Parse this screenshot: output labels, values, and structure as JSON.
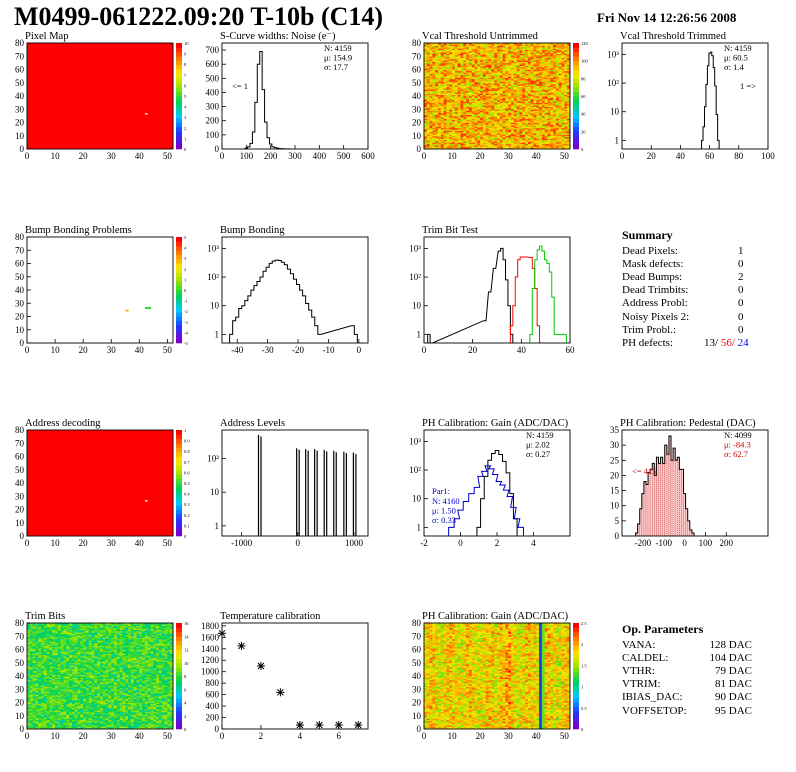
{
  "header": {
    "title": "M0499-061222.09:20 T-10b (C14)",
    "timestamp": "Fri Nov 14 12:26:56 2008"
  },
  "colors": {
    "frame": "#000000",
    "red_hist": "#ff0000",
    "green_hist": "#00cc00",
    "blue_hist": "#0000cc",
    "summary_red": "#ff0000",
    "summary_blue": "#0000ff"
  },
  "chart_data": [
    {
      "id": "pixel_map",
      "type": "heatmap",
      "title": "Pixel Map",
      "xlim": [
        0,
        52
      ],
      "ylim": [
        0,
        80
      ],
      "xticks": [
        "0",
        "10",
        "20",
        "30",
        "40",
        "50"
      ],
      "yticks": [
        "0",
        "10",
        "20",
        "30",
        "40",
        "50",
        "60",
        "70",
        "80"
      ],
      "palette_ticks": [
        "0",
        "1",
        "2",
        "3",
        "4",
        "5",
        "6",
        "7",
        "8",
        "9",
        "10"
      ],
      "fill_value": 10,
      "outliers": [
        {
          "x": 42,
          "y": 26,
          "value": 0
        }
      ]
    },
    {
      "id": "scurve_noise",
      "type": "histogram",
      "title": "S-Curve widths: Noise (e⁻)",
      "xlim": [
        0,
        600
      ],
      "ylim": [
        0,
        750
      ],
      "xticks": [
        "0",
        "100",
        "200",
        "300",
        "400",
        "500",
        "600"
      ],
      "yticks": [
        "0",
        "100",
        "200",
        "300",
        "400",
        "500",
        "600",
        "700"
      ],
      "stats": [
        "N: 4159",
        "μ: 154.9",
        "σ: 17.7"
      ],
      "annotations": [
        "<= 1"
      ],
      "bins": [
        [
          90,
          0
        ],
        [
          100,
          6
        ],
        [
          110,
          15
        ],
        [
          120,
          40
        ],
        [
          130,
          120
        ],
        [
          140,
          330
        ],
        [
          150,
          600
        ],
        [
          160,
          690
        ],
        [
          170,
          420
        ],
        [
          180,
          190
        ],
        [
          190,
          80
        ],
        [
          200,
          35
        ],
        [
          210,
          15
        ],
        [
          220,
          10
        ],
        [
          230,
          5
        ],
        [
          240,
          3
        ],
        [
          250,
          2
        ],
        [
          260,
          1
        ],
        [
          270,
          1
        ],
        [
          280,
          0
        ]
      ]
    },
    {
      "id": "vcal_untrimmed",
      "type": "heatmap",
      "title": "Vcal Threshold Untrimmed",
      "xlim": [
        0,
        52
      ],
      "ylim": [
        0,
        80
      ],
      "xticks": [
        "0",
        "10",
        "20",
        "30",
        "40",
        "50"
      ],
      "yticks": [
        "0",
        "10",
        "20",
        "30",
        "40",
        "50",
        "60",
        "70",
        "80"
      ],
      "palette_ticks": [
        "0",
        "20",
        "40",
        "60",
        "80",
        "100",
        "120"
      ],
      "value_range": [
        70,
        115
      ]
    },
    {
      "id": "vcal_trimmed",
      "type": "histogram",
      "title": "Vcal Threshold Trimmed",
      "log_y": true,
      "xlim": [
        0,
        100
      ],
      "ylim": [
        0.5,
        2500
      ],
      "xticks": [
        "0",
        "20",
        "40",
        "60",
        "80",
        "100"
      ],
      "yticks": [
        "1",
        "10",
        "10²",
        "10³"
      ],
      "stats": [
        "N: 4159",
        "μ: 60.5",
        "σ: 1.4"
      ],
      "annotations": [
        "1 =>"
      ],
      "bins": [
        [
          55,
          1
        ],
        [
          56,
          3
        ],
        [
          57,
          15
        ],
        [
          58,
          90
        ],
        [
          59,
          400
        ],
        [
          60,
          1100
        ],
        [
          61,
          1200
        ],
        [
          62,
          900
        ],
        [
          63,
          350
        ],
        [
          64,
          80
        ],
        [
          65,
          8
        ],
        [
          66,
          1
        ]
      ]
    },
    {
      "id": "bump_bonding_problems",
      "type": "heatmap",
      "title": "Bump Bonding Problems",
      "xlim": [
        0,
        52
      ],
      "ylim": [
        0,
        80
      ],
      "xticks": [
        "0",
        "10",
        "20",
        "30",
        "40",
        "50"
      ],
      "yticks": [
        "0",
        "10",
        "20",
        "30",
        "40",
        "50",
        "60",
        "70",
        "80"
      ],
      "palette_ticks": [
        "-5",
        "-4",
        "-3",
        "-2",
        "-1",
        "0",
        "1",
        "2",
        "3",
        "4",
        "5"
      ],
      "points": [
        {
          "x": 35,
          "y": 24,
          "value": 1.5
        },
        {
          "x": 42,
          "y": 26,
          "value": 1
        },
        {
          "x": 43,
          "y": 26,
          "value": 1
        }
      ]
    },
    {
      "id": "bump_bonding",
      "type": "histogram",
      "title": "Bump Bonding",
      "log_y": true,
      "xlim": [
        -45,
        3
      ],
      "ylim": [
        0.5,
        2500
      ],
      "xticks": [
        "-40",
        "-30",
        "-20",
        "-10",
        "0"
      ],
      "yticks": [
        "1",
        "10",
        "10²",
        "10³"
      ],
      "bins": [
        [
          -42,
          1
        ],
        [
          -41,
          3
        ],
        [
          -40,
          4
        ],
        [
          -39,
          8
        ],
        [
          -38,
          10
        ],
        [
          -37,
          15
        ],
        [
          -36,
          22
        ],
        [
          -35,
          35
        ],
        [
          -34,
          50
        ],
        [
          -33,
          70
        ],
        [
          -32,
          100
        ],
        [
          -31,
          160
        ],
        [
          -30,
          220
        ],
        [
          -29,
          300
        ],
        [
          -28,
          360
        ],
        [
          -27,
          390
        ],
        [
          -26,
          380
        ],
        [
          -25,
          330
        ],
        [
          -24,
          270
        ],
        [
          -23,
          190
        ],
        [
          -22,
          130
        ],
        [
          -21,
          85
        ],
        [
          -20,
          55
        ],
        [
          -19,
          35
        ],
        [
          -18,
          22
        ],
        [
          -17,
          12
        ],
        [
          -16,
          7
        ],
        [
          -15,
          4
        ],
        [
          -14,
          2
        ],
        [
          -13,
          1
        ],
        [
          -2,
          2
        ],
        [
          -1,
          1
        ],
        [
          0,
          0
        ]
      ]
    },
    {
      "id": "trim_bit_test",
      "type": "histogram",
      "title": "Trim Bit Test",
      "log_y": true,
      "xlim": [
        0,
        60
      ],
      "ylim": [
        0.5,
        2500
      ],
      "xticks": [
        "0",
        "20",
        "40",
        "60"
      ],
      "yticks": [
        "1",
        "10",
        "10²",
        "10³"
      ],
      "series": [
        {
          "color": "#000000",
          "bins": [
            [
              2,
              1
            ],
            [
              3,
              0
            ],
            [
              25,
              3
            ],
            [
              27,
              30
            ],
            [
              29,
              200
            ],
            [
              31,
              800
            ],
            [
              32,
              1000
            ],
            [
              33,
              400
            ],
            [
              34,
              80
            ],
            [
              35,
              10
            ],
            [
              36,
              1
            ]
          ]
        },
        {
          "color": "#ff0000",
          "bins": [
            [
              36,
              2
            ],
            [
              37,
              10
            ],
            [
              38,
              100
            ],
            [
              39,
              400
            ],
            [
              40,
              500
            ],
            [
              42,
              500
            ],
            [
              44,
              480
            ],
            [
              45,
              200
            ],
            [
              46,
              40
            ],
            [
              47,
              2
            ],
            [
              48,
              0
            ]
          ]
        },
        {
          "color": "#00cc00",
          "bins": [
            [
              44,
              1
            ],
            [
              45,
              40
            ],
            [
              46,
              400
            ],
            [
              47,
              900
            ],
            [
              48,
              1200
            ],
            [
              49,
              800
            ],
            [
              50,
              400
            ],
            [
              51,
              300
            ],
            [
              52,
              150
            ],
            [
              53,
              20
            ],
            [
              54,
              1
            ],
            [
              58,
              1
            ]
          ]
        }
      ]
    },
    {
      "id": "address_decoding",
      "type": "heatmap",
      "title": "Address decoding",
      "xlim": [
        0,
        52
      ],
      "ylim": [
        0,
        80
      ],
      "xticks": [
        "0",
        "10",
        "20",
        "30",
        "40",
        "50"
      ],
      "yticks": [
        "0",
        "10",
        "20",
        "30",
        "40",
        "50",
        "60",
        "70",
        "80"
      ],
      "palette_ticks": [
        "0",
        "0.1",
        "0.2",
        "0.3",
        "0.4",
        "0.5",
        "0.6",
        "0.7",
        "0.8",
        "0.9",
        "1"
      ],
      "fill_value": 1,
      "outliers": [
        {
          "x": 42,
          "y": 26,
          "value": 0
        }
      ]
    },
    {
      "id": "address_levels",
      "type": "histogram",
      "title": "Address Levels",
      "log_y": true,
      "xlim": [
        -1350,
        1250
      ],
      "ylim": [
        0.5,
        700
      ],
      "xticks": [
        "-1000",
        "0",
        "1000"
      ],
      "yticks": [
        "1",
        "10",
        "10²"
      ],
      "peaks": [
        [
          -700,
          500
        ],
        [
          -20,
          200
        ],
        [
          140,
          190
        ],
        [
          300,
          190
        ],
        [
          470,
          180
        ],
        [
          640,
          170
        ],
        [
          820,
          160
        ],
        [
          990,
          150
        ]
      ]
    },
    {
      "id": "ph_gain",
      "type": "histogram",
      "title": "PH Calibration: Gain (ADC/DAC)",
      "log_y": true,
      "xlim": [
        -2,
        6
      ],
      "ylim": [
        0.5,
        2500
      ],
      "xticks": [
        "-2",
        "0",
        "2",
        "4"
      ],
      "yticks": [
        "1",
        "10",
        "10²",
        "10³"
      ],
      "stats": [
        "N: 4159",
        "μ: 2.02",
        "σ: 0.27"
      ],
      "inset": {
        "label": "Par1:",
        "stats": [
          "N: 4160",
          "μ: 1.50",
          "σ: 0.33"
        ]
      },
      "series": [
        {
          "color": "#000000",
          "bins": [
            [
              1.0,
              1
            ],
            [
              1.2,
              10
            ],
            [
              1.4,
              60
            ],
            [
              1.6,
              220
            ],
            [
              1.8,
              380
            ],
            [
              2.0,
              480
            ],
            [
              2.2,
              350
            ],
            [
              2.4,
              200
            ],
            [
              2.6,
              80
            ],
            [
              2.8,
              15
            ],
            [
              3.0,
              2
            ]
          ]
        },
        {
          "color": "#0000cc",
          "bins": [
            [
              -0.5,
              1
            ],
            [
              -0.2,
              2
            ],
            [
              0.0,
              4
            ],
            [
              0.3,
              8
            ],
            [
              0.6,
              15
            ],
            [
              0.9,
              25
            ],
            [
              1.1,
              60
            ],
            [
              1.3,
              90
            ],
            [
              1.5,
              140
            ],
            [
              1.7,
              110
            ],
            [
              1.9,
              70
            ],
            [
              2.1,
              40
            ],
            [
              2.3,
              30
            ],
            [
              2.5,
              20
            ],
            [
              2.7,
              12
            ],
            [
              2.9,
              5
            ],
            [
              3.1,
              2
            ],
            [
              3.3,
              1
            ]
          ]
        }
      ]
    },
    {
      "id": "ph_pedestal",
      "type": "histogram",
      "title": "PH Calibration: Pedestal (DAC)",
      "xlim": [
        -300,
        400
      ],
      "ylim": [
        0,
        35
      ],
      "xticks": [
        "-200",
        "-100",
        "0",
        "100",
        "200"
      ],
      "yticks": [
        "0",
        "5",
        "10",
        "15",
        "20",
        "25",
        "30",
        "35"
      ],
      "stats": [
        "N: 4099",
        "μ: -84.3",
        "σ: 62.7"
      ],
      "annotations": [
        "<= 415"
      ],
      "bins": [
        [
          -230,
          1
        ],
        [
          -220,
          4
        ],
        [
          -210,
          9
        ],
        [
          -200,
          14
        ],
        [
          -190,
          18
        ],
        [
          -180,
          17
        ],
        [
          -170,
          21
        ],
        [
          -160,
          22
        ],
        [
          -150,
          24
        ],
        [
          -140,
          20
        ],
        [
          -130,
          26
        ],
        [
          -120,
          24
        ],
        [
          -110,
          26
        ],
        [
          -100,
          24
        ],
        [
          -90,
          30
        ],
        [
          -80,
          27
        ],
        [
          -70,
          33
        ],
        [
          -60,
          25
        ],
        [
          -50,
          29
        ],
        [
          -40,
          25
        ],
        [
          -30,
          26
        ],
        [
          -20,
          22
        ],
        [
          -10,
          22
        ],
        [
          0,
          14
        ],
        [
          10,
          9
        ],
        [
          20,
          5
        ],
        [
          30,
          2
        ],
        [
          40,
          1
        ]
      ]
    },
    {
      "id": "trim_bits",
      "type": "heatmap",
      "title": "Trim Bits",
      "xlim": [
        0,
        52
      ],
      "ylim": [
        0,
        80
      ],
      "xticks": [
        "0",
        "10",
        "20",
        "30",
        "40",
        "50"
      ],
      "yticks": [
        "0",
        "10",
        "20",
        "30",
        "40",
        "50",
        "60",
        "70",
        "80"
      ],
      "palette_ticks": [
        "0",
        "2",
        "4",
        "6",
        "8",
        "10",
        "12",
        "14",
        "16"
      ],
      "value_range": [
        6,
        10
      ]
    },
    {
      "id": "temperature_calibration",
      "type": "scatter",
      "title": "Temperature calibration",
      "xlim": [
        0,
        7.5
      ],
      "ylim": [
        0,
        1850
      ],
      "xticks": [
        "0",
        "2",
        "4",
        "6"
      ],
      "yticks": [
        "0",
        "200",
        "400",
        "600",
        "800",
        "1000",
        "1200",
        "1400",
        "1600",
        "1800"
      ],
      "x": [
        0,
        1,
        2,
        3,
        4,
        5,
        6,
        7
      ],
      "y": [
        1670,
        1450,
        1100,
        640,
        70,
        70,
        70,
        70
      ]
    },
    {
      "id": "ph_gain_map",
      "type": "heatmap",
      "title": "PH Calibration: Gain (ADC/DAC)",
      "xlim": [
        0,
        52
      ],
      "ylim": [
        0,
        80
      ],
      "xticks": [
        "0",
        "10",
        "20",
        "30",
        "40",
        "50"
      ],
      "yticks": [
        "0",
        "10",
        "20",
        "30",
        "40",
        "50",
        "60",
        "70",
        "80"
      ],
      "palette_ticks": [
        "0",
        "0.5",
        "1",
        "1.5",
        "2",
        "2.5"
      ],
      "value_range": [
        1.4,
        2.2
      ]
    }
  ],
  "summary": {
    "title": "Summary",
    "rows": [
      {
        "label": "Dead Pixels:",
        "value": "1"
      },
      {
        "label": "Mask defects:",
        "value": "0"
      },
      {
        "label": "Dead Bumps:",
        "value": "2"
      },
      {
        "label": "Dead Trimbits:",
        "value": "0"
      },
      {
        "label": "Address Probl:",
        "value": "0"
      },
      {
        "label": "Noisy Pixels 2:",
        "value": "0"
      },
      {
        "label": "Trim Probl.:",
        "value": "0"
      }
    ],
    "ph_defects": {
      "label": "PH defects:",
      "v1": "13/",
      "v2": "56/",
      "v3": "24"
    }
  },
  "op_parameters": {
    "title": "Op. Parameters",
    "rows": [
      {
        "label": "VANA:",
        "value": "128 DAC"
      },
      {
        "label": "CALDEL:",
        "value": "104 DAC"
      },
      {
        "label": "VTHR:",
        "value": "79 DAC"
      },
      {
        "label": "VTRIM:",
        "value": "81 DAC"
      },
      {
        "label": "IBIAS_DAC:",
        "value": "90 DAC"
      },
      {
        "label": "VOFFSETOP:",
        "value": "95 DAC"
      }
    ]
  }
}
